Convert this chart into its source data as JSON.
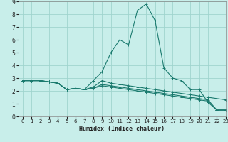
{
  "title": "",
  "xlabel": "Humidex (Indice chaleur)",
  "bg_color": "#c8eeea",
  "grid_color": "#a0d4ce",
  "line_color": "#1a7a6e",
  "xlim": [
    -0.5,
    23
  ],
  "ylim": [
    0,
    9
  ],
  "xticks": [
    0,
    1,
    2,
    3,
    4,
    5,
    6,
    7,
    8,
    9,
    10,
    11,
    12,
    13,
    14,
    15,
    16,
    17,
    18,
    19,
    20,
    21,
    22,
    23
  ],
  "yticks": [
    0,
    1,
    2,
    3,
    4,
    5,
    6,
    7,
    8,
    9
  ],
  "lines": [
    {
      "x": [
        0,
        1,
        2,
        3,
        4,
        5,
        6,
        7,
        8,
        9,
        10,
        11,
        12,
        13,
        14,
        15,
        16,
        17,
        18,
        19,
        20,
        21,
        22,
        23
      ],
      "y": [
        2.8,
        2.8,
        2.8,
        2.7,
        2.6,
        2.1,
        2.2,
        2.1,
        2.8,
        3.5,
        5.0,
        6.0,
        5.6,
        8.3,
        8.8,
        7.5,
        3.8,
        3.0,
        2.8,
        2.1,
        2.1,
        1.1,
        0.5,
        0.5
      ]
    },
    {
      "x": [
        0,
        1,
        2,
        3,
        4,
        5,
        6,
        7,
        8,
        9,
        10,
        11,
        12,
        13,
        14,
        15,
        16,
        17,
        18,
        19,
        20,
        21,
        22,
        23
      ],
      "y": [
        2.8,
        2.8,
        2.8,
        2.7,
        2.6,
        2.1,
        2.2,
        2.1,
        2.3,
        2.8,
        2.6,
        2.5,
        2.4,
        2.3,
        2.2,
        2.1,
        2.0,
        1.9,
        1.8,
        1.7,
        1.6,
        1.5,
        1.4,
        1.3
      ]
    },
    {
      "x": [
        0,
        1,
        2,
        3,
        4,
        5,
        6,
        7,
        8,
        9,
        10,
        11,
        12,
        13,
        14,
        15,
        16,
        17,
        18,
        19,
        20,
        21,
        22,
        23
      ],
      "y": [
        2.8,
        2.8,
        2.8,
        2.7,
        2.6,
        2.1,
        2.2,
        2.1,
        2.2,
        2.5,
        2.4,
        2.3,
        2.2,
        2.1,
        2.0,
        1.9,
        1.8,
        1.7,
        1.6,
        1.5,
        1.4,
        1.3,
        0.5,
        0.5
      ]
    },
    {
      "x": [
        0,
        1,
        2,
        3,
        4,
        5,
        6,
        7,
        8,
        9,
        10,
        11,
        12,
        13,
        14,
        15,
        16,
        17,
        18,
        19,
        20,
        21,
        22,
        23
      ],
      "y": [
        2.8,
        2.8,
        2.8,
        2.7,
        2.6,
        2.1,
        2.2,
        2.1,
        2.2,
        2.4,
        2.3,
        2.2,
        2.1,
        2.0,
        1.9,
        1.8,
        1.7,
        1.6,
        1.5,
        1.4,
        1.3,
        1.2,
        0.5,
        0.5
      ]
    }
  ]
}
